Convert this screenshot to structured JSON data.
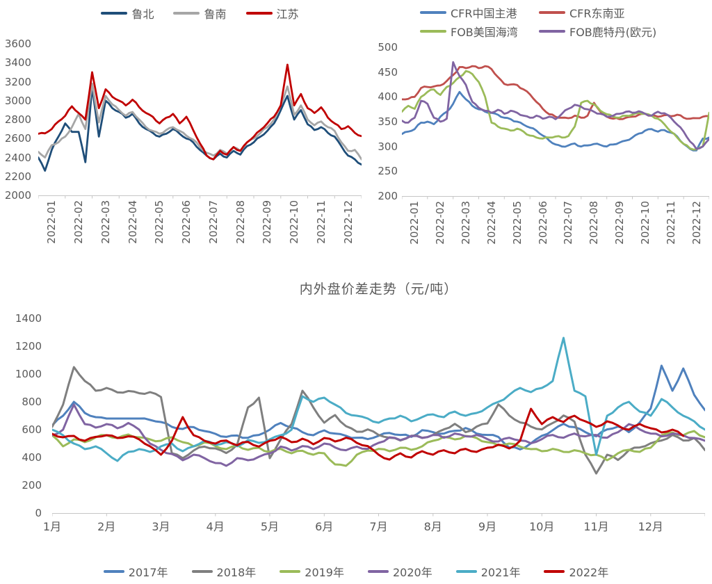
{
  "page": {
    "background": "#ffffff",
    "text_color": "#595959",
    "axis_color": "#c6c6c6"
  },
  "chart_data": [
    {
      "type": "line",
      "title": "",
      "xlabel": "",
      "ylabel": "",
      "x_labels": [
        "2022-01",
        "2022-02",
        "2022-03",
        "2022-04",
        "2022-05",
        "2022-06",
        "2022-07",
        "2022-08",
        "2022-09",
        "2022-10",
        "2022-11",
        "2022-12"
      ],
      "x_range": [
        0,
        12
      ],
      "x_step_months": 0.25,
      "ylim": [
        2000,
        3600
      ],
      "ytick_step": 200,
      "grid": false,
      "legend_position": "top",
      "series": [
        {
          "name": "鲁北",
          "color": "#1F4E79",
          "values": [
            2400,
            2260,
            2480,
            2620,
            2760,
            2670,
            2670,
            2350,
            3140,
            2620,
            3000,
            2920,
            2880,
            2820,
            2860,
            2760,
            2700,
            2660,
            2620,
            2650,
            2700,
            2650,
            2600,
            2560,
            2480,
            2420,
            2380,
            2440,
            2400,
            2470,
            2430,
            2520,
            2560,
            2620,
            2680,
            2760,
            2900,
            3050,
            2800,
            2900,
            2750,
            2690,
            2720,
            2660,
            2620,
            2520,
            2420,
            2380,
            2325
          ]
        },
        {
          "name": "鲁南",
          "color": "#A6A6A6",
          "values": [
            2460,
            2400,
            2530,
            2560,
            2620,
            2720,
            2860,
            2700,
            3180,
            2770,
            3050,
            2960,
            2900,
            2840,
            2880,
            2800,
            2720,
            2680,
            2650,
            2690,
            2720,
            2680,
            2630,
            2590,
            2510,
            2450,
            2420,
            2480,
            2440,
            2510,
            2470,
            2560,
            2600,
            2660,
            2720,
            2800,
            2950,
            3150,
            2850,
            2950,
            2800,
            2740,
            2780,
            2720,
            2680,
            2560,
            2470,
            2480,
            2380
          ]
        },
        {
          "name": "江苏",
          "color": "#C00000",
          "values": [
            2650,
            2655,
            2700,
            2780,
            2840,
            2940,
            2870,
            2800,
            3300,
            2920,
            3120,
            3040,
            3000,
            2950,
            3010,
            2930,
            2870,
            2830,
            2760,
            2820,
            2860,
            2760,
            2830,
            2690,
            2550,
            2420,
            2380,
            2470,
            2430,
            2510,
            2470,
            2560,
            2620,
            2690,
            2760,
            2830,
            2950,
            3380,
            2950,
            3070,
            2920,
            2870,
            2930,
            2820,
            2760,
            2700,
            2730,
            2660,
            2625
          ]
        }
      ]
    },
    {
      "type": "line",
      "title": "",
      "xlabel": "",
      "ylabel": "",
      "x_labels": [
        "2022-01",
        "2022-02",
        "2022-03",
        "2022-04",
        "2022-05",
        "2022-06",
        "2022-07",
        "2022-08",
        "2022-09",
        "2022-10",
        "2022-11",
        "2022-12"
      ],
      "x_range": [
        0,
        12
      ],
      "x_step_months": 0.25,
      "ylim": [
        200,
        500
      ],
      "ytick_step": 50,
      "grid": false,
      "legend_position": "top",
      "legend_columns": 2,
      "series": [
        {
          "name": "CFR中国主港",
          "color": "#4F81BD",
          "values": [
            325,
            330,
            335,
            348,
            350,
            345,
            360,
            370,
            386,
            410,
            395,
            382,
            375,
            370,
            368,
            364,
            358,
            355,
            350,
            344,
            338,
            332,
            322,
            312,
            304,
            300,
            302,
            306,
            300,
            302,
            305,
            303,
            300,
            304,
            308,
            312,
            318,
            326,
            332,
            335,
            330,
            333,
            328,
            320,
            305,
            295,
            292,
            316,
            318
          ]
        },
        {
          "name": "CFR东南亚",
          "color": "#C0504D",
          "values": [
            395,
            396,
            400,
            418,
            420,
            421,
            423,
            432,
            444,
            460,
            458,
            462,
            458,
            462,
            456,
            440,
            426,
            425,
            424,
            415,
            405,
            390,
            376,
            365,
            360,
            358,
            357,
            362,
            358,
            362,
            388,
            370,
            360,
            356,
            355,
            358,
            360,
            364,
            366,
            362,
            360,
            363,
            361,
            364,
            358,
            356,
            357,
            360,
            361
          ]
        },
        {
          "name": "FOB美国海湾",
          "color": "#9BBB59",
          "values": [
            370,
            382,
            376,
            400,
            410,
            415,
            404,
            420,
            428,
            440,
            452,
            446,
            430,
            400,
            348,
            340,
            336,
            332,
            336,
            330,
            322,
            318,
            316,
            318,
            320,
            318,
            321,
            340,
            388,
            392,
            385,
            372,
            365,
            360,
            358,
            362,
            364,
            368,
            366,
            362,
            356,
            345,
            330,
            318,
            305,
            296,
            294,
            300,
            368
          ]
        },
        {
          "name": "FOB鹿特丹(欧元)",
          "color": "#8064A2",
          "values": [
            352,
            348,
            358,
            392,
            386,
            358,
            350,
            356,
            470,
            442,
            424,
            390,
            378,
            372,
            368,
            374,
            366,
            372,
            368,
            362,
            358,
            362,
            356,
            360,
            355,
            366,
            376,
            384,
            380,
            375,
            370,
            366,
            360,
            362,
            366,
            370,
            368,
            371,
            366,
            362,
            370,
            367,
            358,
            344,
            330,
            310,
            295,
            300,
            315
          ]
        }
      ]
    },
    {
      "type": "line",
      "title": "内外盘价差走势（元/吨）",
      "xlabel": "",
      "ylabel": "",
      "x_labels": [
        "1月",
        "2月",
        "3月",
        "4月",
        "5月",
        "6月",
        "7月",
        "8月",
        "9月",
        "10月",
        "11月",
        "12月"
      ],
      "x_range": [
        0,
        12
      ],
      "x_step_months": 0.2,
      "ylim": [
        0,
        1400
      ],
      "ytick_step": 200,
      "grid": false,
      "legend_position": "bottom",
      "series": [
        {
          "name": "2017年",
          "color": "#4F81BD",
          "values": [
            630,
            700,
            800,
            720,
            690,
            680,
            680,
            680,
            680,
            670,
            655,
            620,
            605,
            618,
            590,
            570,
            548,
            558,
            542,
            562,
            600,
            648,
            615,
            582,
            560,
            595,
            572,
            556,
            542,
            532,
            556,
            576,
            562,
            548,
            596,
            582,
            572,
            592,
            612,
            572,
            562,
            548,
            472,
            458,
            502,
            556,
            596,
            642,
            618,
            582,
            552,
            602,
            622,
            582,
            652,
            752,
            1060,
            880,
            1040,
            850,
            740
          ]
        },
        {
          "name": "2018年",
          "color": "#7F7F7F",
          "values": [
            620,
            780,
            1050,
            950,
            880,
            900,
            868,
            878,
            862,
            870,
            835,
            430,
            395,
            450,
            478,
            465,
            432,
            492,
            760,
            830,
            395,
            530,
            640,
            880,
            760,
            650,
            705,
            625,
            585,
            602,
            562,
            542,
            522,
            556,
            542,
            562,
            602,
            642,
            582,
            622,
            645,
            782,
            702,
            652,
            622,
            602,
            648,
            702,
            658,
            420,
            285,
            420,
            382,
            452,
            472,
            502,
            522,
            562,
            522,
            540,
            452
          ]
        },
        {
          "name": "2019年",
          "color": "#9BBB59",
          "values": [
            560,
            480,
            530,
            510,
            545,
            560,
            540,
            565,
            545,
            530,
            520,
            545,
            510,
            480,
            508,
            482,
            460,
            488,
            455,
            470,
            440,
            462,
            430,
            448,
            420,
            430,
            350,
            340,
            420,
            450,
            462,
            445,
            470,
            455,
            480,
            520,
            548,
            530,
            555,
            540,
            510,
            488,
            500,
            478,
            460,
            445,
            462,
            440,
            452,
            430,
            420,
            380,
            430,
            455,
            440,
            470,
            560,
            580,
            560,
            590,
            545
          ]
        },
        {
          "name": "2020年",
          "color": "#8064A2",
          "values": [
            560,
            600,
            780,
            640,
            615,
            640,
            610,
            648,
            600,
            500,
            455,
            425,
            380,
            420,
            395,
            360,
            340,
            395,
            380,
            405,
            430,
            478,
            450,
            482,
            460,
            500,
            472,
            452,
            478,
            462,
            505,
            545,
            525,
            555,
            540,
            562,
            542,
            572,
            552,
            562,
            532,
            515,
            542,
            522,
            502,
            532,
            562,
            542,
            572,
            552,
            562,
            542,
            582,
            640,
            602,
            572,
            552,
            572,
            558,
            540,
            520
          ]
        },
        {
          "name": "2021年",
          "color": "#4BACC6",
          "values": [
            600,
            560,
            500,
            460,
            480,
            430,
            375,
            440,
            460,
            440,
            480,
            500,
            445,
            480,
            520,
            490,
            510,
            480,
            525,
            505,
            530,
            560,
            600,
            840,
            800,
            830,
            780,
            720,
            700,
            680,
            650,
            680,
            700,
            660,
            690,
            710,
            690,
            730,
            700,
            720,
            760,
            800,
            850,
            900,
            870,
            900,
            950,
            1260,
            880,
            840,
            420,
            700,
            760,
            800,
            730,
            700,
            820,
            760,
            700,
            660,
            600
          ]
        },
        {
          "name": "2022年",
          "color": "#C00000",
          "values": [
            570,
            545,
            555,
            520,
            548,
            560,
            540,
            552,
            530,
            480,
            420,
            520,
            690,
            560,
            520,
            500,
            522,
            488,
            512,
            478,
            520,
            548,
            510,
            535,
            495,
            540,
            515,
            542,
            505,
            482,
            420,
            385,
            430,
            400,
            445,
            420,
            452,
            430,
            462,
            440,
            470,
            492,
            465,
            520,
            750,
            640,
            690,
            655,
            700,
            660,
            620,
            660,
            630,
            600,
            640,
            610,
            580,
            600,
            555
          ]
        }
      ]
    }
  ]
}
